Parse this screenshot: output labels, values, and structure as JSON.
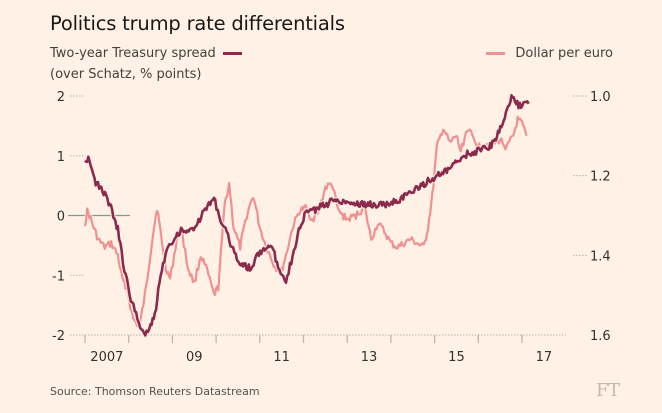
{
  "header": {
    "title": "Politics trump rate differentials",
    "left_series_label": "Two-year Treasury spread",
    "left_series_sublabel": "(over Schatz, % points)",
    "right_series_label": "Dollar per euro"
  },
  "footer": {
    "source": "Source: Thomson Reuters Datastream",
    "logo": "FT"
  },
  "colors": {
    "background": "#fff1e5",
    "spread": "#8c2a4d",
    "dollar_per_euro": "#f09090",
    "zero_line": "#7f9a95",
    "grid": "#b8b3ad"
  },
  "chart_data": {
    "type": "line",
    "title": "Politics trump rate differentials",
    "xlabel": "",
    "x_range": [
      2006.7,
      2017.5
    ],
    "x_ticks": [
      2007,
      2008,
      2009,
      2010,
      2011,
      2012,
      2013,
      2014,
      2015,
      2016,
      2017
    ],
    "x_tick_labels": [
      {
        "year": 2007.5,
        "label": "2007"
      },
      {
        "year": 2009.5,
        "label": "09"
      },
      {
        "year": 2011.5,
        "label": "11"
      },
      {
        "year": 2013.5,
        "label": "13"
      },
      {
        "year": 2015.5,
        "label": "15"
      },
      {
        "year": 2017.5,
        "label": "17"
      }
    ],
    "y_left": {
      "label": "Two-year Treasury spread (over Schatz, % points)",
      "range": [
        -2,
        2
      ],
      "ticks": [
        2,
        1,
        0,
        -1,
        -2
      ],
      "tick_labels": [
        "2",
        "1",
        "0",
        "-1",
        "-2"
      ]
    },
    "y_right": {
      "label": "Dollar per euro",
      "range": [
        1.0,
        1.6
      ],
      "inverted": true,
      "ticks": [
        1.0,
        1.2,
        1.4,
        1.6
      ],
      "tick_labels": [
        "1.0",
        "1.2",
        "1.4",
        "1.6"
      ]
    },
    "grid": false,
    "legend": [
      "top-left",
      "top-right"
    ],
    "series": [
      {
        "name": "Dollar per euro",
        "axis": "right",
        "x": [
          2007.0,
          2007.05,
          2007.1,
          2007.2,
          2007.3,
          2007.45,
          2007.6,
          2007.75,
          2007.85,
          2007.95,
          2008.1,
          2008.25,
          2008.4,
          2008.55,
          2008.65,
          2008.75,
          2008.85,
          2008.95,
          2009.1,
          2009.2,
          2009.35,
          2009.5,
          2009.65,
          2009.8,
          2009.95,
          2010.05,
          2010.2,
          2010.3,
          2010.4,
          2010.55,
          2010.7,
          2010.85,
          2011.0,
          2011.15,
          2011.35,
          2011.5,
          2011.6,
          2011.75,
          2011.9,
          2012.05,
          2012.2,
          2012.35,
          2012.5,
          2012.65,
          2012.8,
          2013.0,
          2013.2,
          2013.4,
          2013.55,
          2013.7,
          2013.85,
          2014.0,
          2014.15,
          2014.3,
          2014.45,
          2014.6,
          2014.75,
          2014.85,
          2014.95,
          2015.05,
          2015.2,
          2015.35,
          2015.5,
          2015.6,
          2015.75,
          2015.9,
          2016.05,
          2016.2,
          2016.35,
          2016.5,
          2016.65,
          2016.8,
          2016.9,
          2017.0,
          2017.1
        ],
        "y": [
          1.32,
          1.29,
          1.3,
          1.33,
          1.36,
          1.38,
          1.37,
          1.4,
          1.46,
          1.48,
          1.56,
          1.58,
          1.48,
          1.35,
          1.28,
          1.36,
          1.43,
          1.46,
          1.36,
          1.33,
          1.43,
          1.47,
          1.4,
          1.44,
          1.5,
          1.48,
          1.27,
          1.22,
          1.33,
          1.38,
          1.3,
          1.25,
          1.33,
          1.38,
          1.43,
          1.44,
          1.4,
          1.33,
          1.29,
          1.28,
          1.31,
          1.29,
          1.23,
          1.22,
          1.29,
          1.31,
          1.3,
          1.28,
          1.36,
          1.32,
          1.34,
          1.37,
          1.38,
          1.37,
          1.36,
          1.37,
          1.38,
          1.33,
          1.25,
          1.13,
          1.08,
          1.12,
          1.1,
          1.14,
          1.08,
          1.11,
          1.13,
          1.12,
          1.12,
          1.11,
          1.13,
          1.1,
          1.06,
          1.07,
          1.1
        ]
      },
      {
        "name": "Two-year Treasury spread",
        "axis": "left",
        "x": [
          2007.0,
          2007.1,
          2007.22,
          2007.4,
          2007.57,
          2007.75,
          2007.9,
          2008.05,
          2008.2,
          2008.35,
          2008.5,
          2008.6,
          2008.73,
          2008.9,
          2009.05,
          2009.2,
          2009.4,
          2009.6,
          2009.75,
          2009.95,
          2010.1,
          2010.3,
          2010.45,
          2010.62,
          2010.8,
          2010.95,
          2011.25,
          2011.45,
          2011.6,
          2011.72,
          2011.87,
          2012.05,
          2012.27,
          2012.5,
          2012.72,
          2013.07,
          2013.42,
          2013.88,
          2014.2,
          2014.55,
          2014.9,
          2015.25,
          2015.45,
          2015.72,
          2016.06,
          2016.22,
          2016.4,
          2016.58,
          2016.76,
          2016.92,
          2017.15
        ],
        "y": [
          0.93,
          0.97,
          0.57,
          0.43,
          0.18,
          -0.23,
          -0.9,
          -1.4,
          -1.73,
          -1.98,
          -1.87,
          -1.65,
          -0.98,
          -0.48,
          -0.4,
          -0.23,
          -0.27,
          -0.1,
          0.1,
          0.3,
          -0.07,
          -0.4,
          -0.7,
          -0.82,
          -0.9,
          -0.65,
          -0.48,
          -0.9,
          -1.07,
          -0.77,
          -0.32,
          0.05,
          0.1,
          0.18,
          0.27,
          0.22,
          0.18,
          0.18,
          0.27,
          0.43,
          0.6,
          0.73,
          0.85,
          1.02,
          1.1,
          1.13,
          1.27,
          1.6,
          1.98,
          1.85,
          1.87
        ]
      }
    ]
  }
}
